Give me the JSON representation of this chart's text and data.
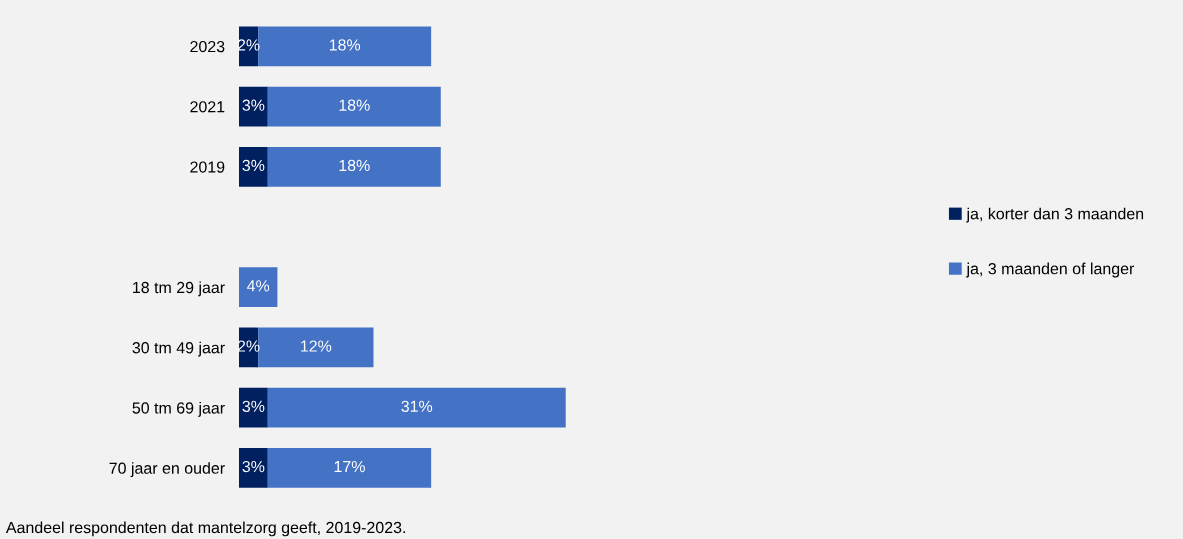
{
  "chart_data": {
    "type": "bar",
    "orientation": "horizontal",
    "stacked": true,
    "categories": [
      "2023",
      "2021",
      "2019",
      null,
      "18 tm 29 jaar",
      "30 tm 49 jaar",
      "50 tm 69 jaar",
      "70 jaar en ouder"
    ],
    "series": [
      {
        "name": "ja, korter dan 3 maanden",
        "color": "#002060",
        "values": [
          2,
          3,
          3,
          null,
          null,
          2,
          3,
          3
        ],
        "value_labels": [
          "2%",
          "3%",
          "3%",
          null,
          null,
          "2%",
          "3%",
          "3%"
        ]
      },
      {
        "name": "ja, 3 maanden of langer",
        "color": "#4472c4",
        "values": [
          18,
          18,
          18,
          null,
          4,
          12,
          31,
          17
        ],
        "value_labels": [
          "18%",
          "18%",
          "18%",
          null,
          "4%",
          "12%",
          "31%",
          "17%"
        ]
      }
    ],
    "tick_labels": "y",
    "legend": "right",
    "grid": false,
    "annotations": [
      "Aandeel respondenten dat mantelzorg geeft, 2019-2023."
    ]
  }
}
